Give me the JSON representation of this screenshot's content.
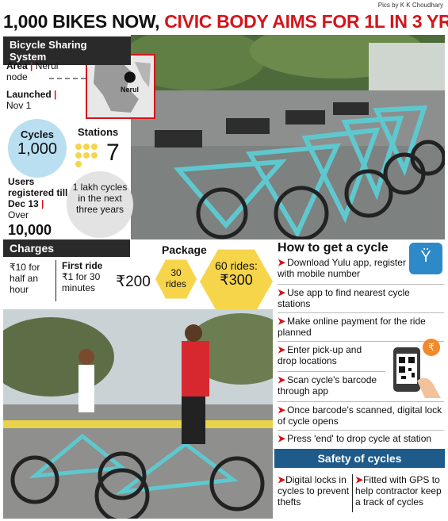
{
  "credit": "Pics by K K Choudhary",
  "headline": {
    "part1": "1,000 BIKES NOW, ",
    "part2": "CIVIC BODY AIMS FOR 1L IN 3 YRS"
  },
  "system": {
    "title": "Bicycle Sharing System",
    "area_label": "Area",
    "area_value": "Nerul node",
    "launched_label": "Launched",
    "launched_value": "Nov 1",
    "map_label": "Nerul"
  },
  "stats": {
    "cycles_label": "Cycles",
    "cycles_value": "1,000",
    "stations_label": "Stations",
    "stations_value": "7",
    "users_label": "Users registered till Dec 13",
    "users_over": "Over",
    "users_value": "10,000",
    "goal": "1 lakh cycles in the next three years"
  },
  "charges": {
    "title": "Charges",
    "half_hour_price": "₹10",
    "half_hour_text": "for half an hour",
    "first_ride_title": "First ride",
    "first_ride_text": "₹1 for 30 minutes",
    "package_title": "Package",
    "pkg1_price": "₹200",
    "pkg1_rides": "30 rides",
    "pkg2_rides": "60 rides:",
    "pkg2_price": "₹300"
  },
  "howto": {
    "title": "How to get a cycle",
    "steps": [
      "Download Yulu app, register with mobile number",
      "Use app to find nearest cycle stations",
      "Make online payment for the ride planned",
      "Enter pick-up and drop locations",
      "Scan cycle's barcode through app",
      "Once barcode's scanned, digital lock of cycle opens",
      "Press 'end' to drop cycle at station"
    ]
  },
  "safety": {
    "title": "Safety of cycles",
    "items": [
      "Digital locks in cycles to prevent thefts",
      "Fitted with GPS to help contractor keep a track of cycles"
    ]
  },
  "colors": {
    "accent": "#d4151b",
    "bike": "#5ec8cf",
    "circle": "#b9dff1",
    "hex": "#f6d54a",
    "dark": "#2a2a2a",
    "safety": "#1f5b8a"
  }
}
